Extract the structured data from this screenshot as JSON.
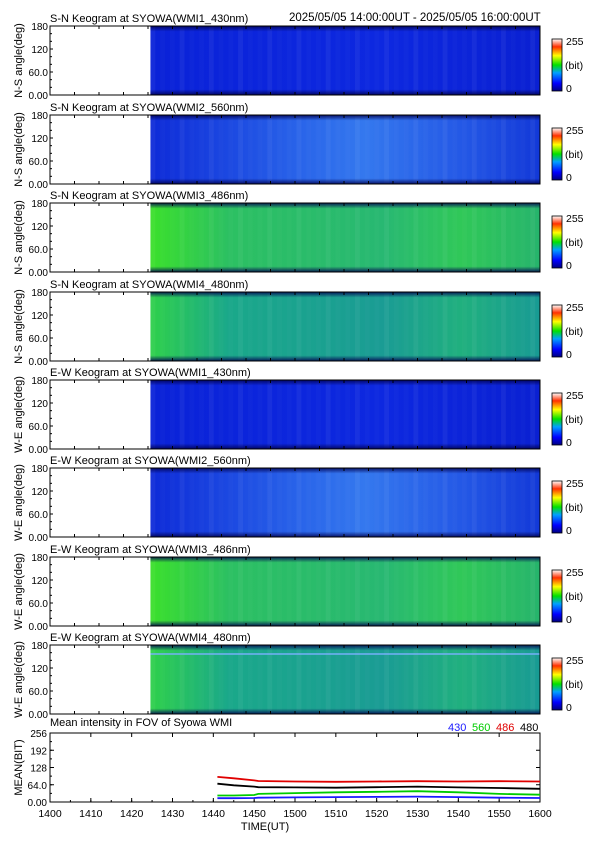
{
  "header": {
    "time_range": "2025/05/05 14:00:00UT - 2025/05/05 16:00:00UT"
  },
  "chart_data": [
    {
      "type": "heatmap",
      "title": "S-N Keogram at SYOWA(WMI1_430nm)",
      "ylabel": "N-S angle(deg)",
      "yticks": [
        "180",
        "120",
        "60.0",
        "0.00"
      ],
      "ylim": [
        0,
        180
      ],
      "xlim": [
        1400,
        1600
      ],
      "data_start": 1441,
      "level": "low",
      "colorbar": {
        "max": "255",
        "unit": "(bit)",
        "min": "0"
      }
    },
    {
      "type": "heatmap",
      "title": "S-N Keogram at SYOWA(WMI2_560nm)",
      "ylabel": "N-S angle(deg)",
      "yticks": [
        "180",
        "120",
        "60.0",
        "0.00"
      ],
      "ylim": [
        0,
        180
      ],
      "xlim": [
        1400,
        1600
      ],
      "data_start": 1441,
      "level": "mid",
      "colorbar": {
        "max": "255",
        "unit": "(bit)",
        "min": "0"
      }
    },
    {
      "type": "heatmap",
      "title": "S-N Keogram at SYOWA(WMI3_486nm)",
      "ylabel": "N-S angle(deg)",
      "yticks": [
        "180",
        "120",
        "60.0",
        "0.00"
      ],
      "ylim": [
        0,
        180
      ],
      "xlim": [
        1400,
        1600
      ],
      "data_start": 1441,
      "level": "high",
      "colorbar": {
        "max": "255",
        "unit": "(bit)",
        "min": "0"
      }
    },
    {
      "type": "heatmap",
      "title": "S-N Keogram at SYOWA(WMI4_480nm)",
      "ylabel": "N-S angle(deg)",
      "yticks": [
        "180",
        "120",
        "60.0",
        "0.00"
      ],
      "ylim": [
        0,
        180
      ],
      "xlim": [
        1400,
        1600
      ],
      "data_start": 1441,
      "level": "highmid",
      "colorbar": {
        "max": "255",
        "unit": "(bit)",
        "min": "0"
      }
    },
    {
      "type": "heatmap",
      "title": "E-W Keogram at SYOWA(WMI1_430nm)",
      "ylabel": "W-E angle(deg)",
      "yticks": [
        "180",
        "120",
        "60.0",
        "0.00"
      ],
      "ylim": [
        0,
        180
      ],
      "xlim": [
        1400,
        1600
      ],
      "data_start": 1441,
      "level": "low",
      "colorbar": {
        "max": "255",
        "unit": "(bit)",
        "min": "0"
      }
    },
    {
      "type": "heatmap",
      "title": "E-W Keogram at SYOWA(WMI2_560nm)",
      "ylabel": "W-E angle(deg)",
      "yticks": [
        "180",
        "120",
        "60.0",
        "0.00"
      ],
      "ylim": [
        0,
        180
      ],
      "xlim": [
        1400,
        1600
      ],
      "data_start": 1441,
      "level": "mid",
      "colorbar": {
        "max": "255",
        "unit": "(bit)",
        "min": "0"
      }
    },
    {
      "type": "heatmap",
      "title": "E-W Keogram at SYOWA(WMI3_486nm)",
      "ylabel": "W-E angle(deg)",
      "yticks": [
        "180",
        "120",
        "60.0",
        "0.00"
      ],
      "ylim": [
        0,
        180
      ],
      "xlim": [
        1400,
        1600
      ],
      "data_start": 1441,
      "level": "high",
      "colorbar": {
        "max": "255",
        "unit": "(bit)",
        "min": "0"
      }
    },
    {
      "type": "heatmap",
      "title": "E-W Keogram at SYOWA(WMI4_480nm)",
      "ylabel": "W-E angle(deg)",
      "yticks": [
        "180",
        "120",
        "60.0",
        "0.00"
      ],
      "ylim": [
        0,
        180
      ],
      "xlim": [
        1400,
        1600
      ],
      "data_start": 1441,
      "level": "highmid",
      "colorbar": {
        "max": "255",
        "unit": "(bit)",
        "min": "0"
      }
    },
    {
      "type": "line",
      "title": "Mean intensity in FOV of Syowa WMI",
      "ylabel": "MEAN(BIT)",
      "xlabel": "TIME(UT)",
      "ylim": [
        0,
        256
      ],
      "yticks": [
        "256",
        "192",
        "128",
        "64.0",
        "0.00"
      ],
      "xlim": [
        1400,
        1600
      ],
      "xticks": [
        "1400",
        "1410",
        "1420",
        "1430",
        "1440",
        "1450",
        "1500",
        "1510",
        "1520",
        "1530",
        "1540",
        "1550",
        "1600"
      ],
      "legend": [
        {
          "label": "430",
          "color": "#1a1aff"
        },
        {
          "label": "560",
          "color": "#00cc00"
        },
        {
          "label": "486",
          "color": "#e00000"
        },
        {
          "label": "480",
          "color": "#000000"
        }
      ],
      "series": [
        {
          "name": "486",
          "color": "#e00000",
          "x": [
            1441,
            1445,
            1450,
            1455,
            1500,
            1510,
            1520,
            1530,
            1540,
            1550,
            1600
          ],
          "y": [
            93,
            88,
            80,
            78,
            76,
            75,
            76,
            77,
            76,
            77,
            76
          ]
        },
        {
          "name": "480",
          "color": "#000000",
          "x": [
            1441,
            1445,
            1450,
            1455,
            1500,
            1510,
            1520,
            1530,
            1540,
            1550,
            1600
          ],
          "y": [
            68,
            62,
            57,
            55,
            54,
            53,
            55,
            57,
            54,
            52,
            49
          ]
        },
        {
          "name": "560",
          "color": "#00cc00",
          "x": [
            1441,
            1445,
            1450,
            1455,
            1500,
            1510,
            1520,
            1530,
            1540,
            1550,
            1600
          ],
          "y": [
            24,
            24,
            26,
            30,
            33,
            36,
            38,
            40,
            36,
            30,
            27
          ]
        },
        {
          "name": "430",
          "color": "#1a1aff",
          "x": [
            1441,
            1445,
            1450,
            1455,
            1500,
            1510,
            1520,
            1530,
            1540,
            1550,
            1600
          ],
          "y": [
            14,
            14,
            15,
            16,
            17,
            18,
            19,
            20,
            18,
            16,
            15
          ]
        }
      ]
    }
  ]
}
